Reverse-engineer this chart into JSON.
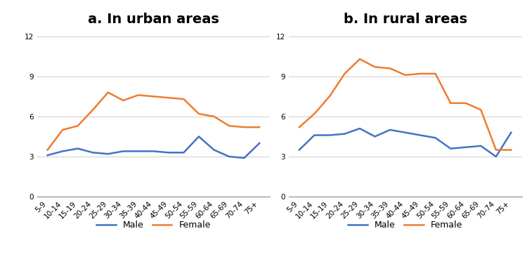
{
  "categories": [
    "5-9",
    "10-14",
    "15-19",
    "20-24",
    "25-29",
    "30-34",
    "35-39",
    "40-44",
    "45-49",
    "50-54",
    "55-59",
    "60-64",
    "65-69",
    "70-74",
    "75+"
  ],
  "urban_male": [
    3.1,
    3.4,
    3.6,
    3.3,
    3.2,
    3.4,
    3.4,
    3.4,
    3.3,
    3.3,
    4.5,
    3.5,
    3.0,
    2.9,
    4.0
  ],
  "urban_female": [
    3.5,
    5.0,
    5.3,
    6.5,
    7.8,
    7.2,
    7.6,
    7.5,
    7.4,
    7.3,
    6.2,
    6.0,
    5.3,
    5.2,
    5.2
  ],
  "rural_male": [
    3.5,
    4.6,
    4.6,
    4.7,
    5.1,
    4.5,
    5.0,
    4.8,
    4.6,
    4.4,
    3.6,
    3.7,
    3.8,
    3.0,
    4.8
  ],
  "rural_female": [
    5.2,
    6.2,
    7.5,
    9.2,
    10.3,
    9.7,
    9.6,
    9.1,
    9.2,
    9.2,
    7.0,
    7.0,
    6.5,
    3.5,
    3.5
  ],
  "male_color": "#4472c4",
  "female_color": "#ed7d31",
  "title_urban": "a. In urban areas",
  "title_rural": "b. In rural areas",
  "ylim": [
    0,
    12
  ],
  "yticks": [
    0,
    3,
    6,
    9,
    12
  ],
  "title_bg": "#d4d4d4",
  "plot_bg": "#ffffff",
  "outer_bg": "#ffffff",
  "line_width": 1.8,
  "title_fontsize": 14,
  "tick_fontsize": 7.5,
  "legend_fontsize": 9
}
